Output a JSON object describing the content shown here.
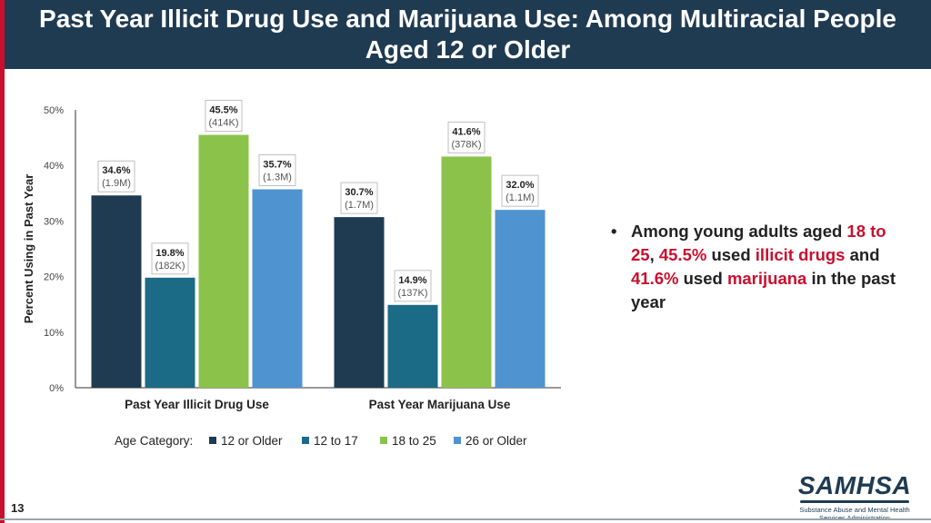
{
  "slide": {
    "title": "Past Year Illicit Drug Use and Marijuana Use: Among Multiracial People Aged 12 or Older",
    "page_number": "13",
    "bullet": {
      "parts": [
        {
          "text": "Among young adults aged ",
          "color": "#222222"
        },
        {
          "text": "18 to 25",
          "color": "#c8102e"
        },
        {
          "text": ", ",
          "color": "#222222"
        },
        {
          "text": "45.5%",
          "color": "#c8102e"
        },
        {
          "text": " used ",
          "color": "#222222"
        },
        {
          "text": "illicit drugs",
          "color": "#c8102e"
        },
        {
          "text": " and ",
          "color": "#222222"
        },
        {
          "text": "41.6%",
          "color": "#c8102e"
        },
        {
          "text": " used ",
          "color": "#222222"
        },
        {
          "text": "marijuana",
          "color": "#c8102e"
        },
        {
          "text": " in the past year",
          "color": "#222222"
        }
      ]
    },
    "logo": {
      "name": "SAMHSA",
      "subtitle_line1": "Substance Abuse and Mental Health",
      "subtitle_line2": "Services Administration"
    },
    "colors": {
      "header": "#1f3b51",
      "accent": "#c8102e"
    }
  },
  "chart_data": {
    "type": "bar",
    "categories": [
      "Past Year Illicit Drug Use",
      "Past Year Marijuana Use"
    ],
    "ylabel": "Percent Using in Past Year",
    "ylim": [
      0,
      50
    ],
    "yticks": [
      "0%",
      "10%",
      "20%",
      "30%",
      "40%",
      "50%"
    ],
    "legend_title": "Age Category:",
    "legend_position": "bottom",
    "series": [
      {
        "name": "12 or Older",
        "color": "#1f3b51",
        "values": [
          34.6,
          30.7
        ],
        "labels": [
          "34.6%",
          "30.7%"
        ],
        "counts": [
          "(1.9M)",
          "(1.7M)"
        ]
      },
      {
        "name": "12 to 17",
        "color": "#1b6a86",
        "values": [
          19.8,
          14.9
        ],
        "labels": [
          "19.8%",
          "14.9%"
        ],
        "counts": [
          "(182K)",
          "(137K)"
        ]
      },
      {
        "name": "18 to 25",
        "color": "#8bc34a",
        "values": [
          45.5,
          41.6
        ],
        "labels": [
          "45.5%",
          "41.6%"
        ],
        "counts": [
          "(414K)",
          "(378K)"
        ]
      },
      {
        "name": "26 or Older",
        "color": "#4f93d1",
        "values": [
          35.7,
          32.0
        ],
        "labels": [
          "35.7%",
          "32.0%"
        ],
        "counts": [
          "(1.3M)",
          "(1.1M)"
        ]
      }
    ]
  }
}
